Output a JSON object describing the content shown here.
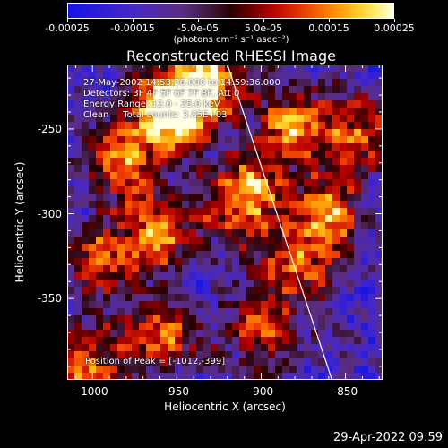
{
  "colorbar": {
    "tick_labels": [
      "-0.00025",
      "-0.00015",
      "-5.0e-05",
      "5.0e-05",
      "0.00015",
      "0.00025"
    ],
    "tick_values": [
      -0.00025,
      -0.00015,
      -5e-05,
      5e-05,
      0.00015,
      0.00025
    ],
    "units": "(photons cm⁻² s⁻¹ asec⁻²)",
    "range": [
      -0.00025,
      0.00025
    ]
  },
  "title": "Reconstructed RHESSI Image",
  "info": {
    "time": "27-May-2002 14:53:36.000 to 14:59:36.000",
    "detectors": "Detectors: 3F 4F 5F 6F 7F 8F, Att 0",
    "energy": "Energy Range: 12.0 - 25.0 keV",
    "method": "Clean     Total counts: 3.85E+03",
    "peak": "Position of Peak = [-1012,-399]"
  },
  "footer": "29-Apr-2022 09:59",
  "chart_data": {
    "type": "heatmap",
    "title": "Reconstructed RHESSI Image",
    "xlabel": "Heliocentric X (arcsec)",
    "ylabel": "Heliocentric Y (arcsec)",
    "xlim": [
      -1015,
      -828
    ],
    "ylim": [
      -398,
      -212
    ],
    "x_ticks": [
      -1000,
      -950,
      -900,
      -850
    ],
    "x_tick_labels": [
      "-1000",
      "-950",
      "-900",
      "-850"
    ],
    "y_ticks": [
      -250,
      -300,
      -350
    ],
    "y_tick_labels": [
      "-250",
      "-300",
      "-350"
    ],
    "colormap": "hot (black-red-yellow-white) with purple/blue negative side",
    "peak_position": [
      -1012,
      -399
    ],
    "limb_line": [
      [
        -920,
        -212
      ],
      [
        -858,
        -398
      ]
    ],
    "bright_regions": [
      {
        "x": -955,
        "y": -240,
        "level": 1.0
      },
      {
        "x": -935,
        "y": -225,
        "level": 0.95
      },
      {
        "x": -910,
        "y": -290,
        "level": 0.9
      },
      {
        "x": -880,
        "y": -250,
        "level": 0.8
      },
      {
        "x": -985,
        "y": -270,
        "level": 0.7
      },
      {
        "x": -960,
        "y": -310,
        "level": 0.7
      },
      {
        "x": -995,
        "y": -330,
        "level": 0.6
      },
      {
        "x": -960,
        "y": -370,
        "level": 0.7
      },
      {
        "x": -880,
        "y": -330,
        "level": 0.65
      },
      {
        "x": -860,
        "y": -300,
        "level": 0.7
      },
      {
        "x": -840,
        "y": -250,
        "level": 0.6
      },
      {
        "x": -1005,
        "y": -390,
        "level": 0.75
      },
      {
        "x": -900,
        "y": -370,
        "level": 0.55
      }
    ]
  }
}
